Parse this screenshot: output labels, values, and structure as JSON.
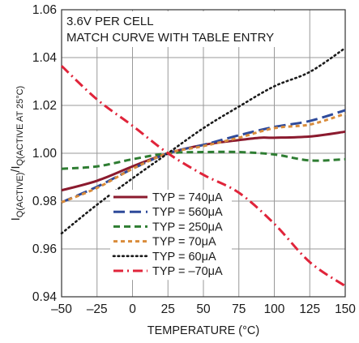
{
  "chart_data": {
    "type": "line",
    "annotation_lines": [
      "3.6V PER CELL",
      "MATCH CURVE WITH TABLE ENTRY"
    ],
    "xlabel": "TEMPERATURE (°C)",
    "ylabel_main": "I",
    "ylabel_sub1": "Q(ACTIVE)",
    "ylabel_sep": "/I",
    "ylabel_sub2": "Q(ACTIVE AT 25°C)",
    "xlim": [
      -50,
      150
    ],
    "ylim": [
      0.94,
      1.06
    ],
    "x_ticks": [
      -50,
      -25,
      0,
      25,
      50,
      75,
      100,
      125,
      150
    ],
    "x_tick_labels": [
      "–50",
      "–25",
      "0",
      "25",
      "50",
      "75",
      "100",
      "125",
      "150"
    ],
    "y_ticks": [
      0.94,
      0.96,
      0.98,
      1.0,
      1.02,
      1.04,
      1.06
    ],
    "y_tick_labels": [
      "0.94",
      "0.96",
      "0.98",
      "1.00",
      "1.02",
      "1.04",
      "1.06"
    ],
    "grid": true,
    "legend_position": "bottom-center",
    "series": [
      {
        "name": "TYP = 740μA",
        "color": "#8b1a2e",
        "dash": "solid",
        "x": [
          -50,
          -25,
          0,
          25,
          50,
          75,
          90,
          100,
          125,
          150
        ],
        "y": [
          0.9845,
          0.9885,
          0.9945,
          1.0,
          1.0035,
          1.0055,
          1.0065,
          1.0065,
          1.007,
          1.009
        ]
      },
      {
        "name": "TYP = 560μA",
        "color": "#2e4a9a",
        "dash": "long-dash",
        "x": [
          -50,
          -25,
          0,
          25,
          50,
          75,
          100,
          125,
          150
        ],
        "y": [
          0.9795,
          0.986,
          0.9935,
          1.0,
          1.0035,
          1.0075,
          1.011,
          1.0135,
          1.018
        ]
      },
      {
        "name": "TYP = 250μA",
        "color": "#2e7d32",
        "dash": "dash",
        "x": [
          -50,
          -25,
          0,
          25,
          50,
          75,
          100,
          125,
          150
        ],
        "y": [
          0.9935,
          0.9945,
          0.9975,
          1.0,
          1.0005,
          1.0005,
          0.9995,
          0.997,
          0.9975
        ]
      },
      {
        "name": "TYP = 70μA",
        "color": "#d98c3b",
        "dash": "short-dash",
        "x": [
          -50,
          -25,
          0,
          25,
          50,
          75,
          100,
          125,
          150
        ],
        "y": [
          0.9795,
          0.9855,
          0.9935,
          1.0,
          1.003,
          1.0065,
          1.0105,
          1.012,
          1.0165
        ]
      },
      {
        "name": "TYP = 60μA",
        "color": "#1a1a1a",
        "dash": "dot",
        "x": [
          -50,
          -25,
          0,
          25,
          50,
          75,
          100,
          125,
          150
        ],
        "y": [
          0.9665,
          0.9785,
          0.9895,
          1.0,
          1.0105,
          1.0195,
          1.028,
          1.034,
          1.044
        ]
      },
      {
        "name": "TYP = –70μA",
        "color": "#e0243a",
        "dash": "dash-dot",
        "x": [
          -50,
          -25,
          0,
          25,
          50,
          75,
          100,
          125,
          150
        ],
        "y": [
          1.0365,
          1.0225,
          1.0115,
          1.0,
          0.991,
          0.9835,
          0.9705,
          0.9545,
          0.9445
        ]
      }
    ]
  }
}
